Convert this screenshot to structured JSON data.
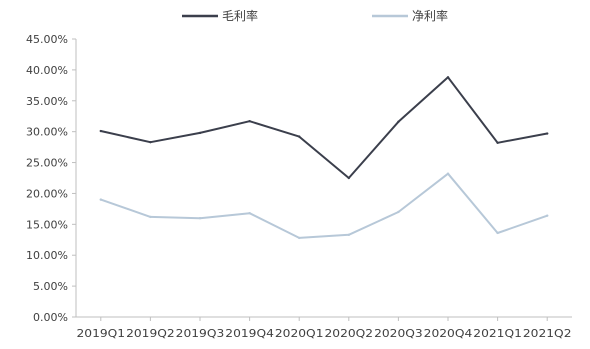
{
  "chart_data": {
    "type": "line",
    "categories": [
      "2019Q1",
      "2019Q2",
      "2019Q3",
      "2019Q4",
      "2020Q1",
      "2020Q2",
      "2020Q3",
      "2020Q4",
      "2021Q1",
      "2021Q2"
    ],
    "series": [
      {
        "name": "毛利率",
        "color": "#3b3f4c",
        "values": [
          30.1,
          28.3,
          29.8,
          31.7,
          29.2,
          22.5,
          31.6,
          38.8,
          28.2,
          29.7
        ]
      },
      {
        "name": "净利率",
        "color": "#b7c8d8",
        "values": [
          19.0,
          16.2,
          16.0,
          16.8,
          12.8,
          13.3,
          17.0,
          23.2,
          13.6,
          16.4
        ]
      }
    ],
    "ylim": [
      0,
      45
    ],
    "yticks": [
      "0.00%",
      "5.00%",
      "10.00%",
      "15.00%",
      "20.00%",
      "25.00%",
      "30.00%",
      "35.00%",
      "40.00%",
      "45.00%"
    ],
    "legend_position": "top",
    "grid": false
  }
}
